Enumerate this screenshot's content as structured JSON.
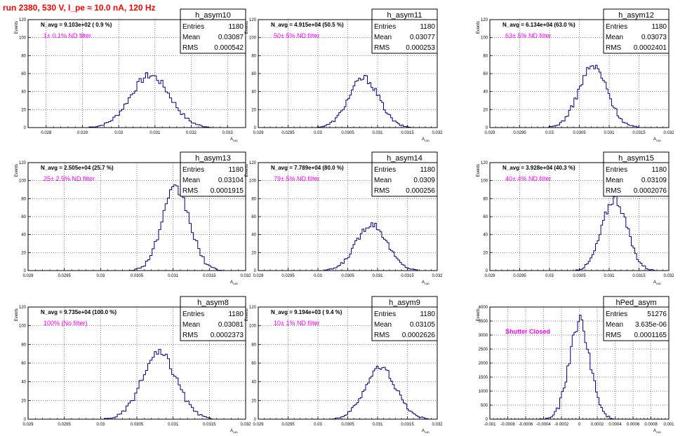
{
  "page": {
    "title": "run 2380,   530 V, I_pe ≈ 10.0 nA, 120 Hz"
  },
  "colors": {
    "histogram": "#000080",
    "annotation": "#ff00ff",
    "title": "#ff0000",
    "grid": "#000000"
  },
  "chart_data": [
    {
      "type": "bar",
      "hist": "h_asym10",
      "stats": {
        "entries": "1180",
        "mean": "0.03087",
        "rms": "0.000542"
      },
      "navg": "N_avg = 9.103e+02 ( 0.9 %)",
      "note": "1± 0.1% ND filter",
      "xlabel": "A_UID",
      "ylabel": "Events",
      "xlim": [
        0.0275,
        0.0335
      ],
      "ylim": [
        0,
        120
      ],
      "xticks": [
        "0.028",
        "0.029",
        "0.03",
        "0.031",
        "0.032",
        "0.033"
      ],
      "yticks": [
        "0",
        "20",
        "40",
        "60",
        "80",
        "100",
        "120"
      ],
      "center": 0.03087,
      "sigma": 0.000542,
      "peak": 58
    },
    {
      "type": "bar",
      "hist": "h_asym11",
      "stats": {
        "entries": "1180",
        "mean": "0.03077",
        "rms": "0.000253"
      },
      "navg": "N_avg = 4.915e+04 (50.5 %)",
      "note": "50± 5% ND filter",
      "xlabel": "A_UID",
      "ylabel": "Events",
      "xlim": [
        0.029,
        0.032
      ],
      "ylim": [
        0,
        120
      ],
      "xticks": [
        "0.029",
        "0.0295",
        "0.03",
        "0.0305",
        "0.031",
        "0.0315",
        "0.032"
      ],
      "yticks": [
        "0",
        "20",
        "40",
        "60",
        "80",
        "100",
        "120"
      ],
      "center": 0.03077,
      "sigma": 0.000253,
      "peak": 55
    },
    {
      "type": "bar",
      "hist": "h_asym12",
      "stats": {
        "entries": "1180",
        "mean": "0.03073",
        "rms": "0.0002401"
      },
      "navg": "N_avg = 6.134e+04 (63.0 %)",
      "note": "63± 5% ND filter",
      "xlabel": "A_UID",
      "ylabel": "Events",
      "xlim": [
        0.029,
        0.032
      ],
      "ylim": [
        0,
        120
      ],
      "xticks": [
        "0.029",
        "0.0295",
        "0.03",
        "0.0305",
        "0.031",
        "0.0315",
        "0.032"
      ],
      "yticks": [
        "0",
        "20",
        "40",
        "60",
        "80",
        "100",
        "120"
      ],
      "center": 0.03073,
      "sigma": 0.0002401,
      "peak": 68
    },
    {
      "type": "bar",
      "hist": "h_asym13",
      "stats": {
        "entries": "1180",
        "mean": "0.03104",
        "rms": "0.0001915"
      },
      "navg": "N_avg = 2.505e+04 (25.7 %)",
      "note": "25± 2.5% ND filter",
      "xlabel": "A_UID",
      "ylabel": "Events",
      "xlim": [
        0.029,
        0.032
      ],
      "ylim": [
        0,
        120
      ],
      "xticks": [
        "0.029",
        "0.0295",
        "0.03",
        "0.0305",
        "0.031",
        "0.0315",
        "0.032"
      ],
      "yticks": [
        "0",
        "20",
        "40",
        "60",
        "80",
        "100",
        "120"
      ],
      "center": 0.03104,
      "sigma": 0.0001915,
      "peak": 90
    },
    {
      "type": "bar",
      "hist": "h_asym14",
      "stats": {
        "entries": "1180",
        "mean": "0.0309",
        "rms": "0.000256"
      },
      "navg": "N_avg = 7.789e+04 (80.0 %)",
      "note": "79± 5% ND filter",
      "xlabel": "A_UID",
      "ylabel": "Events",
      "xlim": [
        0.029,
        0.032
      ],
      "ylim": [
        0,
        120
      ],
      "xticks": [
        "0.029",
        "0.0295",
        "0.03",
        "0.0305",
        "0.031",
        "0.0315",
        "0.032"
      ],
      "yticks": [
        "0",
        "20",
        "40",
        "60",
        "80",
        "100",
        "120"
      ],
      "center": 0.0309,
      "sigma": 0.000256,
      "peak": 52
    },
    {
      "type": "bar",
      "hist": "h_asym15",
      "stats": {
        "entries": "1180",
        "mean": "0.03109",
        "rms": "0.0002076"
      },
      "navg": "N_avg = 3.928e+04 (40.3 %)",
      "note": "40± 4% ND filter",
      "xlabel": "A_UID",
      "ylabel": "Events",
      "xlim": [
        0.029,
        0.032
      ],
      "ylim": [
        0,
        120
      ],
      "xticks": [
        "0.029",
        "0.0295",
        "0.03",
        "0.0305",
        "0.031",
        "0.0315",
        "0.032"
      ],
      "yticks": [
        "0",
        "20",
        "40",
        "60",
        "80",
        "100",
        "120"
      ],
      "center": 0.03109,
      "sigma": 0.0002076,
      "peak": 80
    },
    {
      "type": "bar",
      "hist": "h_asym8",
      "stats": {
        "entries": "1180",
        "mean": "0.03081",
        "rms": "0.0002373"
      },
      "navg": "N_avg = 9.735e+04 (100.0 %)",
      "note": "100% (No filter)",
      "xlabel": "A_UID",
      "ylabel": "Events",
      "xlim": [
        0.029,
        0.032
      ],
      "ylim": [
        0,
        120
      ],
      "xticks": [
        "0.029",
        "0.0295",
        "0.03",
        "0.0305",
        "0.031",
        "0.0315",
        "0.032"
      ],
      "yticks": [
        "0",
        "20",
        "40",
        "60",
        "80",
        "100",
        "120"
      ],
      "center": 0.03081,
      "sigma": 0.0002373,
      "peak": 70
    },
    {
      "type": "bar",
      "hist": "h_asym9",
      "stats": {
        "entries": "1180",
        "mean": "0.03105",
        "rms": "0.0002626"
      },
      "navg": "N_avg = 9.194e+03 ( 9.4 %)",
      "note": "10± 1% ND filter",
      "xlabel": "A_UID",
      "ylabel": "Events",
      "xlim": [
        0.029,
        0.032
      ],
      "ylim": [
        0,
        120
      ],
      "xticks": [
        "0.029",
        "0.0295",
        "0.03",
        "0.0305",
        "0.031",
        "0.0315",
        "0.032"
      ],
      "yticks": [
        "0",
        "20",
        "40",
        "60",
        "80",
        "100",
        "120"
      ],
      "center": 0.03105,
      "sigma": 0.0002626,
      "peak": 55
    },
    {
      "type": "bar",
      "hist": "hPed_asym",
      "stats": {
        "entries": "51276",
        "mean": "3.635e-06",
        "rms": "0.0001165"
      },
      "navg": "",
      "note": "Shutter Closed",
      "xlabel": "A_UID",
      "ylabel": "Events",
      "xlim": [
        -0.001,
        0.001
      ],
      "ylim": [
        0,
        4000
      ],
      "xticks": [
        "-0.001",
        "-0.0008",
        "-0.0006",
        "-0.0004",
        "-0.0002",
        "0",
        "0.0002",
        "0.0004",
        "0.0006",
        "0.0008",
        "0.001"
      ],
      "yticks": [
        "0",
        "500",
        "1000",
        "1500",
        "2000",
        "2500",
        "3000",
        "3500",
        "4000"
      ],
      "center": 3.6e-06,
      "sigma": 0.0001165,
      "peak": 3480
    }
  ]
}
